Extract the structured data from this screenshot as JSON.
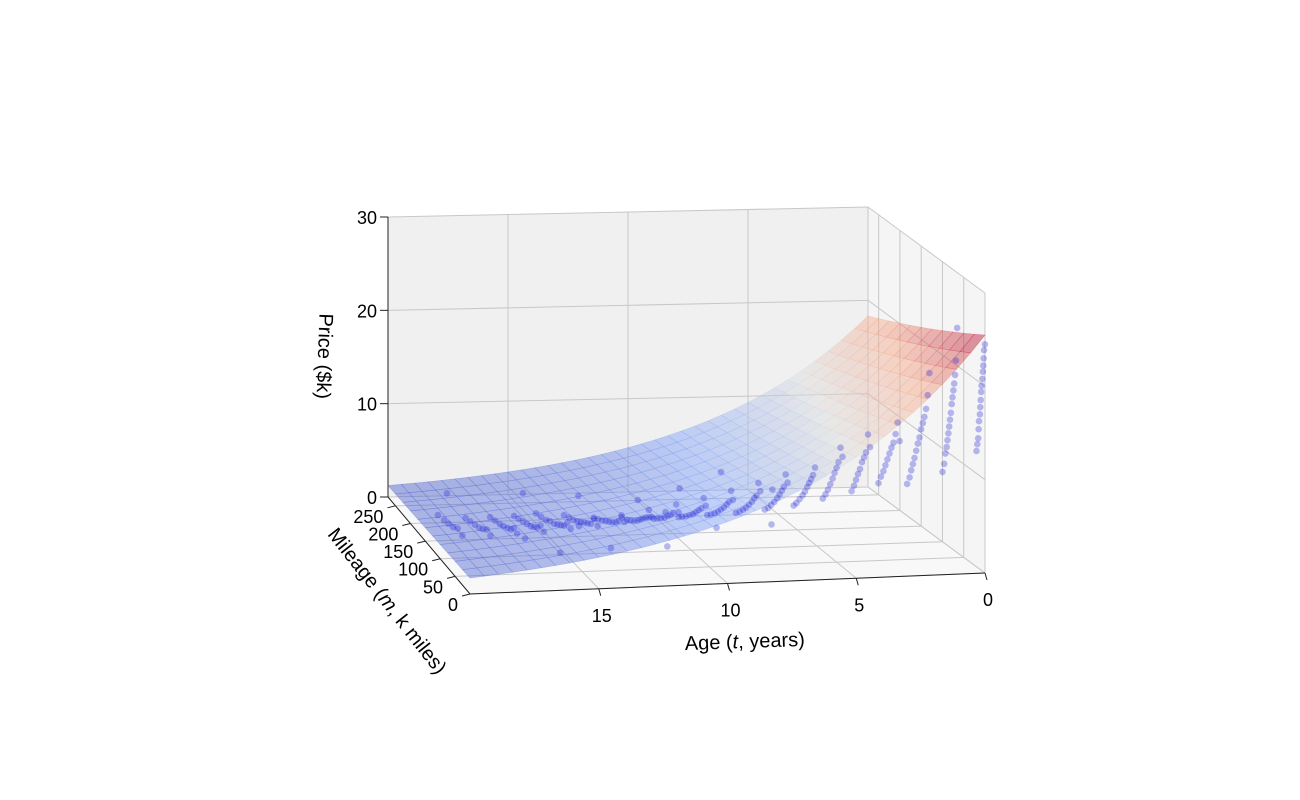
{
  "chart_data": {
    "type": "scatter",
    "subtype": "3d-scatter-with-fitted-surface",
    "title": "",
    "xlabel_parts": [
      "Age (",
      "t",
      ", years)"
    ],
    "ylabel_parts": [
      "Mileage (",
      "m",
      ", k miles)"
    ],
    "zlabel": "Price ($k)",
    "x_ticks": [
      "0",
      "5",
      "10",
      "15"
    ],
    "y_ticks": [
      "0",
      "50",
      "100",
      "150",
      "200",
      "250"
    ],
    "z_ticks": [
      "0",
      "10",
      "20",
      "30"
    ],
    "xlim": [
      0,
      20
    ],
    "ylim": [
      0,
      275
    ],
    "zlim": [
      0,
      30
    ],
    "grid": true,
    "legend": "none",
    "surface": {
      "name": "",
      "model": "price = 25.5 * exp(-0.135*t - 0.0012*m)",
      "colormap": "coolwarm",
      "opacity": 0.45
    },
    "series": [
      {
        "kind": "scatter",
        "color": "#1f1fd8",
        "alpha": 0.3,
        "points": [
          [
            0,
            0,
            24.5
          ],
          [
            0,
            2,
            23.8
          ],
          [
            0,
            3,
            22.9
          ],
          [
            0,
            4,
            22.1
          ],
          [
            0,
            5,
            21.4
          ],
          [
            0,
            6,
            20.6
          ],
          [
            0,
            8,
            19.8
          ],
          [
            0,
            9,
            19.1
          ],
          [
            0,
            10,
            18.2
          ],
          [
            0,
            11,
            17.4
          ],
          [
            0,
            12,
            16.6
          ],
          [
            0,
            14,
            15.8
          ],
          [
            0,
            15,
            14.9
          ],
          [
            0,
            16,
            13.9
          ],
          [
            0,
            18,
            13.2
          ],
          [
            0,
            20,
            12.4
          ],
          [
            1,
            5,
            26.2
          ],
          [
            1,
            8,
            22.6
          ],
          [
            1,
            10,
            21.0
          ],
          [
            1,
            12,
            20.0
          ],
          [
            1,
            14,
            19.2
          ],
          [
            1,
            16,
            18.4
          ],
          [
            1,
            18,
            17.6
          ],
          [
            1,
            20,
            16.6
          ],
          [
            1,
            22,
            15.8
          ],
          [
            1,
            24,
            15.0
          ],
          [
            1,
            26,
            14.2
          ],
          [
            1,
            28,
            13.4
          ],
          [
            1,
            30,
            12.6
          ],
          [
            1,
            33,
            11.8
          ],
          [
            1,
            36,
            10.6
          ],
          [
            1,
            40,
            9.6
          ],
          [
            2,
            10,
            21.3
          ],
          [
            2,
            14,
            18.8
          ],
          [
            2,
            18,
            17.2
          ],
          [
            2,
            22,
            16.2
          ],
          [
            2,
            26,
            15.4
          ],
          [
            2,
            30,
            14.6
          ],
          [
            2,
            34,
            13.6
          ],
          [
            2,
            38,
            12.8
          ],
          [
            2,
            42,
            11.9
          ],
          [
            2,
            46,
            11.0
          ],
          [
            2,
            50,
            10.2
          ],
          [
            2,
            54,
            9.4
          ],
          [
            2,
            58,
            8.5
          ],
          [
            2,
            64,
            7.6
          ],
          [
            3,
            20,
            13.8
          ],
          [
            3,
            25,
            15.6
          ],
          [
            3,
            30,
            14.2
          ],
          [
            3,
            35,
            13.1
          ],
          [
            3,
            40,
            12.4
          ],
          [
            3,
            45,
            11.6
          ],
          [
            3,
            50,
            10.8
          ],
          [
            3,
            55,
            10.0
          ],
          [
            3,
            60,
            9.2
          ],
          [
            3,
            66,
            8.4
          ],
          [
            3,
            72,
            7.5
          ],
          [
            4,
            30,
            12.9
          ],
          [
            4,
            35,
            14.1
          ],
          [
            4,
            40,
            12.0
          ],
          [
            4,
            45,
            11.3
          ],
          [
            4,
            50,
            10.6
          ],
          [
            4,
            55,
            9.7
          ],
          [
            4,
            60,
            9.0
          ],
          [
            4,
            65,
            8.2
          ],
          [
            4,
            70,
            7.4
          ],
          [
            4,
            76,
            6.6
          ],
          [
            5,
            35,
            11.8
          ],
          [
            5,
            40,
            12.6
          ],
          [
            5,
            45,
            10.9
          ],
          [
            5,
            50,
            10.1
          ],
          [
            5,
            55,
            9.4
          ],
          [
            5,
            60,
            8.6
          ],
          [
            5,
            66,
            7.8
          ],
          [
            5,
            72,
            7.0
          ],
          [
            5,
            78,
            6.3
          ],
          [
            5,
            85,
            5.6
          ],
          [
            6,
            40,
            10.6
          ],
          [
            6,
            45,
            9.6
          ],
          [
            6,
            50,
            9.0
          ],
          [
            6,
            55,
            8.4
          ],
          [
            6,
            60,
            7.8
          ],
          [
            6,
            66,
            7.1
          ],
          [
            6,
            72,
            6.5
          ],
          [
            6,
            80,
            5.8
          ],
          [
            6,
            88,
            5.1
          ],
          [
            6,
            95,
            4.6
          ],
          [
            7,
            45,
            8.9
          ],
          [
            7,
            50,
            9.6
          ],
          [
            7,
            55,
            8.1
          ],
          [
            7,
            60,
            7.5
          ],
          [
            7,
            66,
            6.9
          ],
          [
            7,
            72,
            6.3
          ],
          [
            7,
            80,
            5.6
          ],
          [
            7,
            88,
            5.0
          ],
          [
            7,
            96,
            4.4
          ],
          [
            7,
            105,
            3.9
          ],
          [
            8,
            50,
            7.9
          ],
          [
            8,
            55,
            8.6
          ],
          [
            8,
            60,
            7.1
          ],
          [
            8,
            66,
            6.6
          ],
          [
            8,
            72,
            6.0
          ],
          [
            8,
            80,
            5.4
          ],
          [
            8,
            88,
            4.8
          ],
          [
            8,
            96,
            4.3
          ],
          [
            8,
            105,
            3.8
          ],
          [
            8,
            115,
            3.3
          ],
          [
            9,
            55,
            6.9
          ],
          [
            9,
            60,
            7.7
          ],
          [
            9,
            66,
            6.3
          ],
          [
            9,
            72,
            5.8
          ],
          [
            9,
            80,
            5.2
          ],
          [
            9,
            88,
            4.7
          ],
          [
            9,
            96,
            4.2
          ],
          [
            9,
            105,
            3.7
          ],
          [
            9,
            115,
            3.2
          ],
          [
            9,
            125,
            2.8
          ],
          [
            10,
            60,
            6.2
          ],
          [
            10,
            66,
            6.8
          ],
          [
            10,
            72,
            5.5
          ],
          [
            10,
            80,
            5.0
          ],
          [
            10,
            88,
            4.5
          ],
          [
            10,
            96,
            4.0
          ],
          [
            10,
            105,
            3.6
          ],
          [
            10,
            115,
            3.1
          ],
          [
            10,
            125,
            2.7
          ],
          [
            10,
            135,
            2.3
          ],
          [
            11,
            65,
            5.4
          ],
          [
            11,
            72,
            6.0
          ],
          [
            11,
            80,
            4.8
          ],
          [
            11,
            88,
            4.3
          ],
          [
            11,
            96,
            3.9
          ],
          [
            11,
            105,
            3.4
          ],
          [
            11,
            115,
            3.0
          ],
          [
            11,
            125,
            2.6
          ],
          [
            11,
            135,
            2.2
          ],
          [
            11,
            148,
            1.9
          ],
          [
            12,
            70,
            4.8
          ],
          [
            12,
            78,
            5.3
          ],
          [
            12,
            86,
            4.2
          ],
          [
            12,
            94,
            3.8
          ],
          [
            12,
            102,
            3.4
          ],
          [
            12,
            110,
            3.0
          ],
          [
            12,
            120,
            2.6
          ],
          [
            12,
            130,
            2.3
          ],
          [
            12,
            140,
            2.0
          ],
          [
            12,
            155,
            1.7
          ],
          [
            13,
            75,
            4.2
          ],
          [
            13,
            84,
            4.6
          ],
          [
            13,
            92,
            3.7
          ],
          [
            13,
            100,
            3.3
          ],
          [
            13,
            110,
            2.9
          ],
          [
            13,
            120,
            2.6
          ],
          [
            13,
            130,
            2.3
          ],
          [
            13,
            140,
            2.0
          ],
          [
            13,
            152,
            1.7
          ],
          [
            13,
            165,
            1.4
          ],
          [
            14,
            80,
            3.7
          ],
          [
            14,
            90,
            4.1
          ],
          [
            14,
            100,
            3.2
          ],
          [
            14,
            110,
            2.9
          ],
          [
            14,
            120,
            2.6
          ],
          [
            14,
            130,
            2.3
          ],
          [
            14,
            140,
            2.0
          ],
          [
            14,
            152,
            1.7
          ],
          [
            14,
            165,
            1.5
          ],
          [
            14,
            180,
            1.2
          ],
          [
            15,
            85,
            3.3
          ],
          [
            15,
            95,
            3.6
          ],
          [
            15,
            105,
            2.9
          ],
          [
            15,
            115,
            2.6
          ],
          [
            15,
            125,
            2.3
          ],
          [
            15,
            135,
            2.0
          ],
          [
            15,
            148,
            1.8
          ],
          [
            15,
            160,
            1.5
          ],
          [
            15,
            175,
            1.3
          ],
          [
            15,
            190,
            1.1
          ],
          [
            16,
            90,
            2.9
          ],
          [
            16,
            100,
            3.2
          ],
          [
            16,
            110,
            2.6
          ],
          [
            16,
            120,
            2.3
          ],
          [
            16,
            130,
            2.0
          ],
          [
            16,
            142,
            1.8
          ],
          [
            16,
            155,
            1.6
          ],
          [
            16,
            168,
            1.4
          ],
          [
            16,
            182,
            1.2
          ],
          [
            17,
            95,
            2.6
          ],
          [
            17,
            105,
            2.8
          ],
          [
            17,
            115,
            2.3
          ],
          [
            17,
            125,
            2.1
          ],
          [
            17,
            138,
            1.8
          ],
          [
            17,
            150,
            1.6
          ],
          [
            17,
            165,
            1.4
          ],
          [
            17,
            180,
            1.2
          ],
          [
            18,
            100,
            2.3
          ],
          [
            18,
            112,
            2.5
          ],
          [
            18,
            124,
            2.1
          ],
          [
            18,
            136,
            1.8
          ],
          [
            18,
            150,
            1.6
          ],
          [
            18,
            165,
            1.4
          ],
          [
            18,
            180,
            1.2
          ],
          [
            19,
            110,
            2.0
          ],
          [
            19,
            125,
            2.2
          ],
          [
            19,
            140,
            1.8
          ],
          [
            19,
            155,
            1.6
          ],
          [
            19,
            170,
            1.4
          ],
          [
            19,
            190,
            1.2
          ],
          [
            8,
            20,
            5.4
          ],
          [
            10,
            30,
            4.9
          ],
          [
            12,
            25,
            3.3
          ],
          [
            14,
            40,
            2.8
          ],
          [
            12,
            30,
            6.8
          ],
          [
            15,
            60,
            4.5
          ],
          [
            17,
            70,
            3.0
          ],
          [
            16,
            40,
            2.5
          ],
          [
            9,
            200,
            3.0
          ],
          [
            11,
            180,
            2.6
          ],
          [
            13,
            210,
            2.1
          ],
          [
            15,
            230,
            1.8
          ],
          [
            6,
            150,
            4.4
          ],
          [
            18,
            240,
            1.6
          ],
          [
            7,
            220,
            3.9
          ]
        ]
      }
    ]
  }
}
